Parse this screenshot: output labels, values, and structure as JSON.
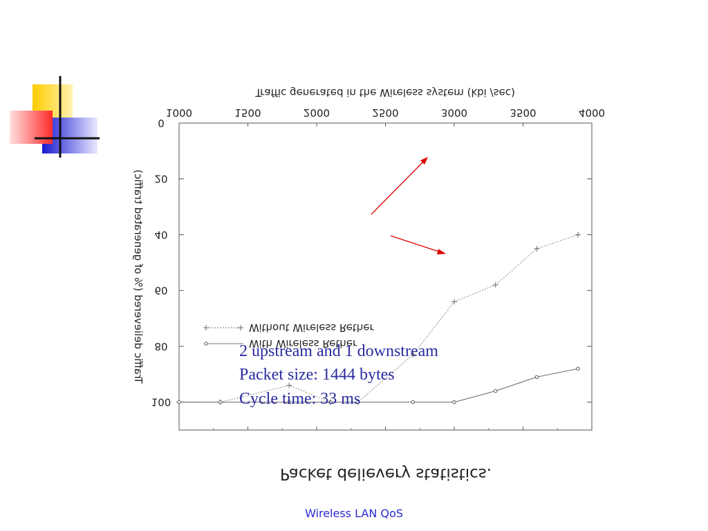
{
  "slide": {
    "notes": [
      "2 upstream and 1 downstream",
      "Packet size: 1444 bytes",
      "Cycle time: 33 ms"
    ],
    "footer": "Wireless LAN QoS",
    "accent_colors": {
      "yellow": "#ffcc00",
      "red": "#ff3333",
      "blue": "#2222cc",
      "note_text": "#2a2aa0",
      "arrow": "#dd0000"
    }
  },
  "chart_data": {
    "type": "line",
    "mirrored": true,
    "title": "Packet delievery statistics.",
    "xlabel": "Traffic generated in the Wireless system (kbi  /sec)",
    "ylabel": "Traffic delievered (% of generated traffic)",
    "xlim": [
      1000,
      4000
    ],
    "ylim": [
      0,
      110
    ],
    "x_ticks": [
      1000,
      1500,
      2000,
      2500,
      3000,
      3500,
      4000
    ],
    "x_tick_labels": [
      "1000",
      "1500",
      "2000",
      "2500",
      "3000",
      "3500",
      "4000"
    ],
    "y_ticks": [
      0,
      20,
      40,
      60,
      80,
      100
    ],
    "y_tick_labels": [
      "0",
      "20",
      "40",
      "60",
      "80",
      "100"
    ],
    "grid": false,
    "legend": "lower-left",
    "series": [
      {
        "name": "Without Wireless Rether",
        "marker": "plus",
        "dash": true,
        "x": [
          1000,
          1300,
          1800,
          2100,
          2300,
          2700,
          3000,
          3300,
          3600,
          3900
        ],
        "y": [
          100,
          100,
          94,
          100,
          100,
          83,
          64,
          58,
          45,
          40
        ]
      },
      {
        "name": "With Wireless Rether",
        "marker": "circle",
        "dash": false,
        "x": [
          1000,
          1300,
          1800,
          2100,
          2300,
          2700,
          3000,
          3300,
          3600,
          3900
        ],
        "y": [
          100,
          100,
          100,
          100,
          100,
          100,
          100,
          96,
          91,
          88
        ]
      }
    ]
  }
}
